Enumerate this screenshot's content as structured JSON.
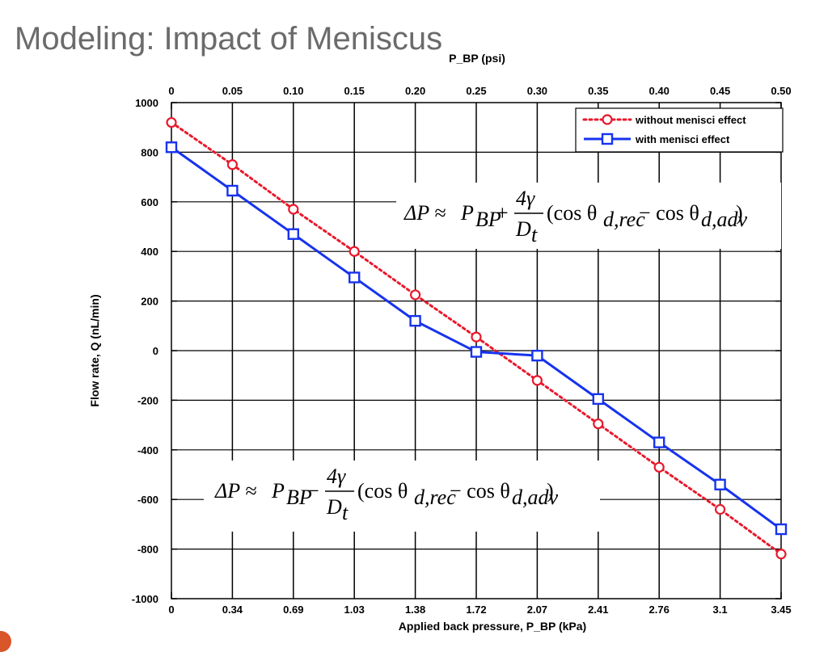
{
  "slide": {
    "title": "Modeling: Impact of Meniscus"
  },
  "equations": {
    "upper": "ΔP ≈ P_BP + 4γ/D_t (cos θ_d,rec − cos θ_d,adv)",
    "lower": "ΔP ≈ P_BP − 4γ/D_t (cos θ_d,rec − cos θ_d,adv)"
  },
  "chart_data": {
    "type": "line",
    "xlabel": "Applied back pressure, P_BP (kPa)",
    "ylabel": "Flow rate, Q (nL/min)",
    "x2label": "P_BP (psi)",
    "x_kpa_ticks": [
      "0",
      "0.34",
      "0.69",
      "1.03",
      "1.38",
      "1.72",
      "2.07",
      "2.41",
      "2.76",
      "3.1",
      "3.45"
    ],
    "x_psi_ticks": [
      "0",
      "0.05",
      "0.10",
      "0.15",
      "0.20",
      "0.25",
      "0.30",
      "0.35",
      "0.40",
      "0.45",
      "0.50"
    ],
    "x": [
      0,
      0.05,
      0.1,
      0.15,
      0.2,
      0.25,
      0.3,
      0.35,
      0.4,
      0.45,
      0.5
    ],
    "xlim": [
      0,
      0.5
    ],
    "ylim": [
      -1000,
      1000
    ],
    "y_ticks": [
      "1000",
      "800",
      "600",
      "400",
      "200",
      "0",
      "-200",
      "-400",
      "-600",
      "-800",
      "-1000"
    ],
    "grid": false,
    "legend_position": "top-right",
    "series": [
      {
        "name": "without menisci effect",
        "color": "#e8192c",
        "style": "dotted",
        "marker": "circle",
        "values": [
          920,
          750,
          570,
          400,
          225,
          55,
          -120,
          -295,
          -470,
          -640,
          -820
        ]
      },
      {
        "name": "with menisci effect",
        "color": "#1733ee",
        "style": "solid",
        "marker": "square",
        "values": [
          820,
          645,
          470,
          295,
          120,
          -5,
          -20,
          -195,
          -370,
          -540,
          -720
        ]
      }
    ]
  }
}
